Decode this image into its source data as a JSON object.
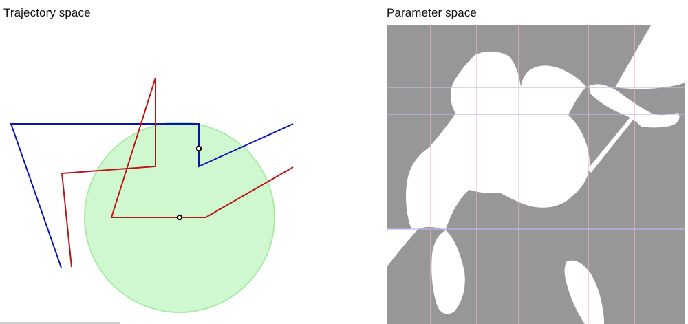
{
  "panels": {
    "trajectory": {
      "title": "Trajectory space"
    },
    "parameter": {
      "title": "Parameter space"
    }
  },
  "colors": {
    "path_a": "#0a14b4",
    "path_b": "#c01414",
    "obstacle_fill": "#c8f7c8",
    "obstacle_stroke": "#a8eca8",
    "forbidden": "#979797",
    "free": "#ffffff",
    "grid_vertical": "#f2b7bf",
    "grid_horizontal": "#b9b7f2",
    "marker": "#000000"
  }
}
